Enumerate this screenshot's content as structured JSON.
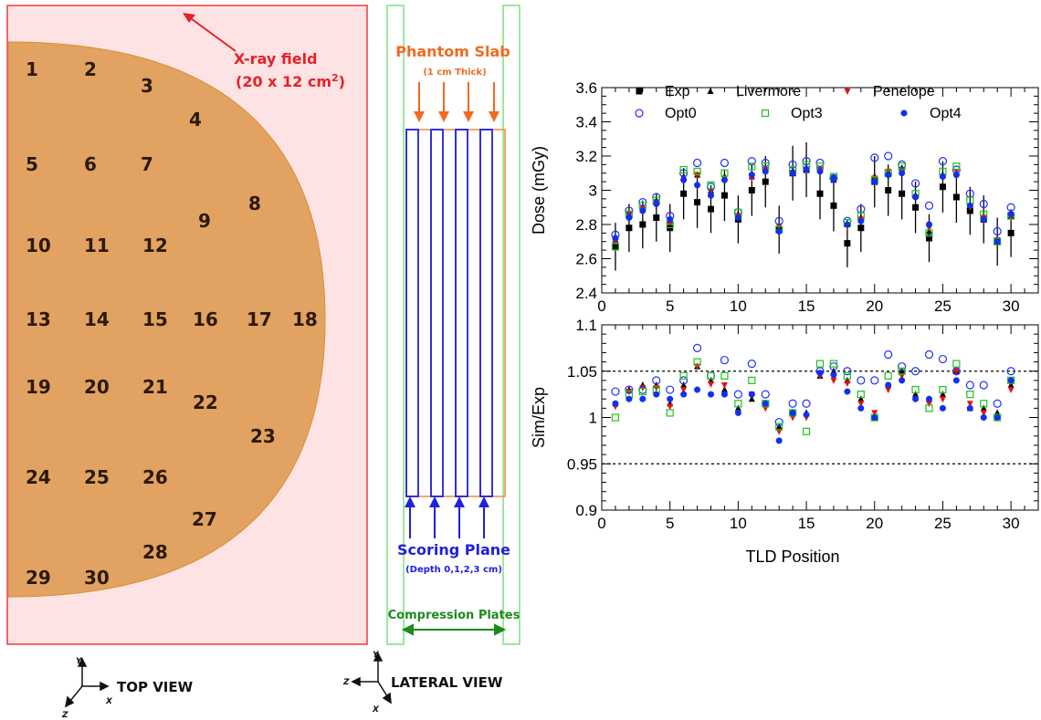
{
  "top_view": {
    "field_label": "X-ray field",
    "field_size": "(20 x 12 cm",
    "field_size_sup": "2",
    "field_size_close": ")",
    "view_label": "TOP VIEW",
    "tld_positions": [
      "1",
      "2",
      "3",
      "4",
      "5",
      "6",
      "7",
      "8",
      "9",
      "10",
      "11",
      "12",
      "13",
      "14",
      "15",
      "16",
      "17",
      "18",
      "19",
      "20",
      "21",
      "22",
      "23",
      "24",
      "25",
      "26",
      "27",
      "28",
      "29",
      "30"
    ],
    "axes": {
      "y": "Y",
      "x": "X",
      "z": "Z"
    }
  },
  "lateral_view": {
    "phantom_label": "Phantom Slab",
    "phantom_sub": "(1 cm Thick)",
    "scoring_label": "Scoring Plane",
    "scoring_sub": "(Depth 0,1,2,3 cm)",
    "compression_label": "Compression Plates",
    "view_label": "LATERAL VIEW",
    "axes": {
      "y": "Y",
      "x": "X",
      "z": "Z"
    }
  },
  "colors": {
    "field_fill": "#fde3e3",
    "field_stroke": "#ec3a3a",
    "phantom_fill": "#e2a261",
    "phantom_edge": "#d98f33",
    "plates": "#7ee07e",
    "slab": "#f28c3a",
    "scoring": "#2020e0",
    "livermore": "#000000",
    "penelope": "#e81010",
    "opt0": "#2030ff",
    "opt3": "#20c020",
    "opt4": "#1030f0"
  },
  "chart_data": [
    {
      "type": "scatter",
      "ylabel": "Dose (mGy)",
      "ylim": [
        2.4,
        3.6
      ],
      "xlim": [
        0,
        32
      ],
      "yticks": [
        "2.4",
        "2.6",
        "2.8",
        "3",
        "3.2",
        "3.4",
        "3.6"
      ],
      "xticks": [
        "0",
        "5",
        "10",
        "15",
        "20",
        "25",
        "30"
      ],
      "x": [
        1,
        2,
        3,
        4,
        5,
        6,
        7,
        8,
        9,
        10,
        11,
        12,
        13,
        14,
        15,
        16,
        17,
        18,
        19,
        20,
        21,
        22,
        23,
        24,
        25,
        26,
        27,
        28,
        29,
        30
      ],
      "series": [
        {
          "name": "Exp",
          "marker": "square",
          "values": [
            2.67,
            2.78,
            2.8,
            2.84,
            2.78,
            2.98,
            2.93,
            2.89,
            2.97,
            2.83,
            3.0,
            3.05,
            2.77,
            3.1,
            3.12,
            2.98,
            2.91,
            2.69,
            2.78,
            3.05,
            3.0,
            2.98,
            2.9,
            2.72,
            3.02,
            2.96,
            2.88,
            2.83,
            2.7,
            2.75
          ],
          "err": [
            0.14,
            0.14,
            0.14,
            0.14,
            0.14,
            0.15,
            0.15,
            0.14,
            0.15,
            0.14,
            0.15,
            0.15,
            0.14,
            0.16,
            0.16,
            0.15,
            0.15,
            0.14,
            0.14,
            0.15,
            0.15,
            0.15,
            0.15,
            0.14,
            0.15,
            0.15,
            0.14,
            0.14,
            0.14,
            0.14
          ]
        },
        {
          "name": "Livermore",
          "marker": "triangle",
          "values": [
            2.71,
            2.86,
            2.9,
            2.94,
            2.82,
            3.08,
            3.09,
            3.0,
            3.08,
            2.86,
            3.08,
            3.12,
            2.78,
            3.11,
            3.13,
            3.12,
            3.06,
            2.8,
            2.84,
            3.08,
            3.11,
            3.13,
            2.97,
            2.76,
            3.09,
            3.1,
            2.91,
            2.83,
            2.71,
            2.85
          ]
        },
        {
          "name": "Penelope",
          "marker": "triangle-down",
          "values": [
            2.7,
            2.86,
            2.89,
            2.93,
            2.81,
            3.07,
            3.09,
            2.99,
            3.07,
            2.85,
            3.07,
            3.12,
            2.79,
            3.1,
            3.12,
            3.12,
            3.07,
            2.79,
            2.83,
            3.07,
            3.11,
            3.12,
            2.96,
            2.78,
            3.08,
            3.11,
            2.9,
            2.84,
            2.71,
            2.84
          ]
        },
        {
          "name": "Opt0",
          "marker": "circle-open",
          "values": [
            2.74,
            2.88,
            2.93,
            2.96,
            2.85,
            3.1,
            3.16,
            3.02,
            3.16,
            2.87,
            3.17,
            3.16,
            2.82,
            3.15,
            3.17,
            3.16,
            3.07,
            2.82,
            2.89,
            3.19,
            3.2,
            3.15,
            3.04,
            2.91,
            3.17,
            3.12,
            2.98,
            2.92,
            2.76,
            2.9
          ]
        },
        {
          "name": "Opt3",
          "marker": "square-open",
          "values": [
            2.67,
            2.86,
            2.91,
            2.94,
            2.8,
            3.12,
            3.11,
            3.03,
            3.1,
            2.87,
            3.14,
            3.14,
            2.77,
            3.12,
            3.15,
            3.14,
            3.08,
            2.81,
            2.85,
            3.06,
            3.1,
            3.14,
            2.98,
            2.75,
            3.11,
            3.14,
            2.94,
            2.86,
            2.7,
            2.85
          ]
        },
        {
          "name": "Opt4",
          "marker": "circle",
          "values": [
            2.72,
            2.84,
            2.88,
            2.92,
            2.83,
            3.06,
            3.03,
            2.97,
            3.06,
            2.84,
            3.09,
            3.11,
            2.76,
            3.1,
            3.12,
            3.11,
            3.07,
            2.8,
            2.82,
            3.05,
            3.09,
            3.1,
            2.96,
            2.8,
            3.08,
            3.09,
            2.91,
            2.83,
            2.7,
            2.86
          ]
        }
      ]
    },
    {
      "type": "scatter",
      "ylabel": "Sim/Exp",
      "xlabel": "TLD Position",
      "ylim": [
        0.9,
        1.1
      ],
      "xlim": [
        0,
        32
      ],
      "yticks": [
        "0.9",
        "0.95",
        "1",
        "1.05",
        "1.1"
      ],
      "xticks": [
        "0",
        "5",
        "10",
        "15",
        "20",
        "25",
        "30"
      ],
      "reference_lines": [
        1.05,
        0.95
      ],
      "x": [
        1,
        2,
        3,
        4,
        5,
        6,
        7,
        8,
        9,
        10,
        11,
        12,
        13,
        14,
        15,
        16,
        17,
        18,
        19,
        20,
        21,
        22,
        23,
        24,
        25,
        26,
        27,
        28,
        29,
        30
      ],
      "series": [
        {
          "name": "Livermore",
          "values": [
            1.015,
            1.03,
            1.035,
            1.035,
            1.015,
            1.035,
            1.055,
            1.04,
            1.03,
            1.01,
            1.02,
            1.015,
            0.99,
            1.005,
            1.005,
            1.045,
            1.05,
            1.04,
            1.02,
            1.0,
            1.035,
            1.05,
            1.025,
            1.02,
            1.025,
            1.05,
            1.01,
            1.01,
            1.005,
            1.035
          ]
        },
        {
          "name": "Penelope",
          "values": [
            1.012,
            1.028,
            1.032,
            1.032,
            1.012,
            1.03,
            1.055,
            1.036,
            1.035,
            1.005,
            1.025,
            1.01,
            0.985,
            1.0,
            1.0,
            1.045,
            1.04,
            1.037,
            1.015,
            1.005,
            1.03,
            1.045,
            1.02,
            1.015,
            1.02,
            1.05,
            1.015,
            1.005,
            1.0,
            1.03
          ]
        },
        {
          "name": "Opt0",
          "values": [
            1.028,
            1.03,
            1.03,
            1.04,
            1.03,
            1.04,
            1.075,
            1.045,
            1.062,
            1.025,
            1.058,
            1.025,
            0.995,
            1.015,
            1.015,
            1.05,
            1.055,
            1.05,
            1.04,
            1.04,
            1.068,
            1.055,
            1.05,
            1.068,
            1.063,
            1.05,
            1.035,
            1.035,
            1.015,
            1.05
          ]
        },
        {
          "name": "Opt3",
          "values": [
            1.0,
            1.025,
            1.028,
            1.03,
            1.005,
            1.045,
            1.06,
            1.045,
            1.045,
            1.015,
            1.04,
            1.015,
            0.99,
            1.005,
            0.985,
            1.058,
            1.058,
            1.045,
            1.025,
            1.0,
            1.045,
            1.05,
            1.03,
            1.01,
            1.03,
            1.058,
            1.025,
            1.015,
            1.0,
            1.04
          ]
        },
        {
          "name": "Opt4",
          "values": [
            1.015,
            1.02,
            1.02,
            1.025,
            1.02,
            1.025,
            1.03,
            1.025,
            1.025,
            1.005,
            1.025,
            1.015,
            0.975,
            1.005,
            1.003,
            1.048,
            1.046,
            1.028,
            1.01,
            1.0,
            1.035,
            1.04,
            1.02,
            1.02,
            1.01,
            1.04,
            1.01,
            1.0,
            1.0,
            1.04
          ]
        }
      ]
    }
  ],
  "legend_rows": [
    [
      {
        "name": "Exp",
        "key": "exp"
      },
      {
        "name": "Livermore",
        "key": "livermore"
      },
      {
        "name": "Penelope",
        "key": "penelope"
      }
    ],
    [
      {
        "name": "Opt0",
        "key": "opt0"
      },
      {
        "name": "Opt3",
        "key": "opt3"
      },
      {
        "name": "Opt4",
        "key": "opt4"
      }
    ]
  ]
}
